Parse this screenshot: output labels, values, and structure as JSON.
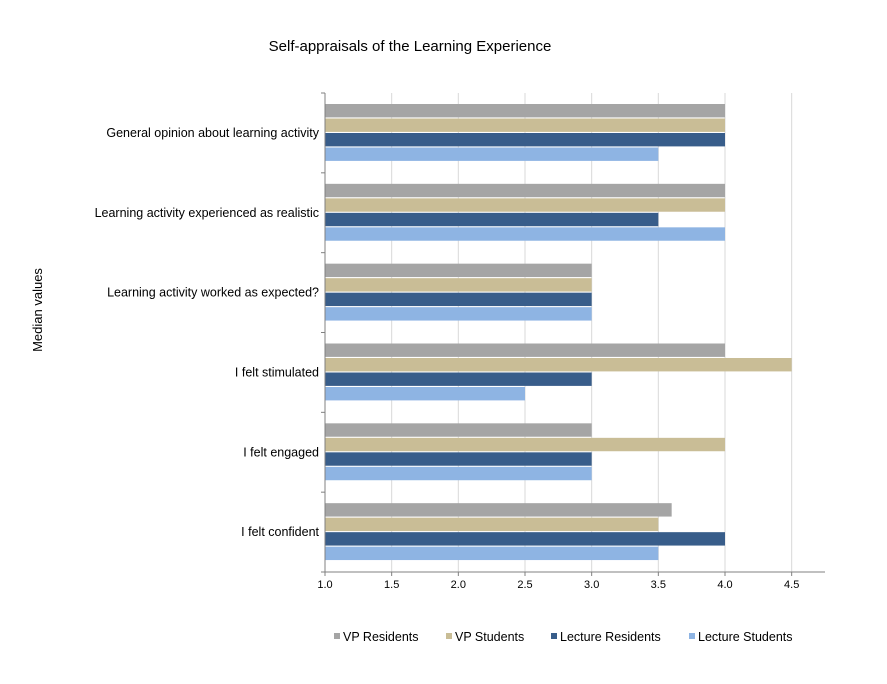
{
  "chart_data": {
    "type": "bar",
    "orientation": "horizontal",
    "title": "Self-appraisals of the Learning Experience",
    "xlabel": "",
    "ylabel": "Median values",
    "xlim": [
      1.0,
      4.75
    ],
    "xticks": [
      1.0,
      1.5,
      2.0,
      2.5,
      3.0,
      3.5,
      4.0,
      4.5
    ],
    "xtick_labels": [
      "1.0",
      "1.5",
      "2.0",
      "2.5",
      "3.0",
      "3.5",
      "4.0",
      "4.5"
    ],
    "grid": "vertical",
    "legend_position": "bottom",
    "categories": [
      "General opinion about learning activity",
      "Learning activity experienced as realistic",
      "Learning activity worked as expected?",
      "I felt stimulated",
      "I felt engaged",
      "I felt confident"
    ],
    "series": [
      {
        "name": "VP Residents",
        "color": "#a5a5a5",
        "values": [
          4.0,
          4.0,
          3.0,
          4.0,
          3.0,
          3.6
        ]
      },
      {
        "name": "VP Students",
        "color": "#c9bd96",
        "values": [
          4.0,
          4.0,
          3.0,
          4.5,
          4.0,
          3.5
        ]
      },
      {
        "name": "Lecture Residents",
        "color": "#385d8a",
        "values": [
          4.0,
          3.5,
          3.0,
          3.0,
          3.0,
          4.0
        ]
      },
      {
        "name": "Lecture Students",
        "color": "#8eb4e3",
        "values": [
          3.5,
          4.0,
          3.0,
          2.5,
          3.0,
          3.5
        ]
      }
    ]
  }
}
